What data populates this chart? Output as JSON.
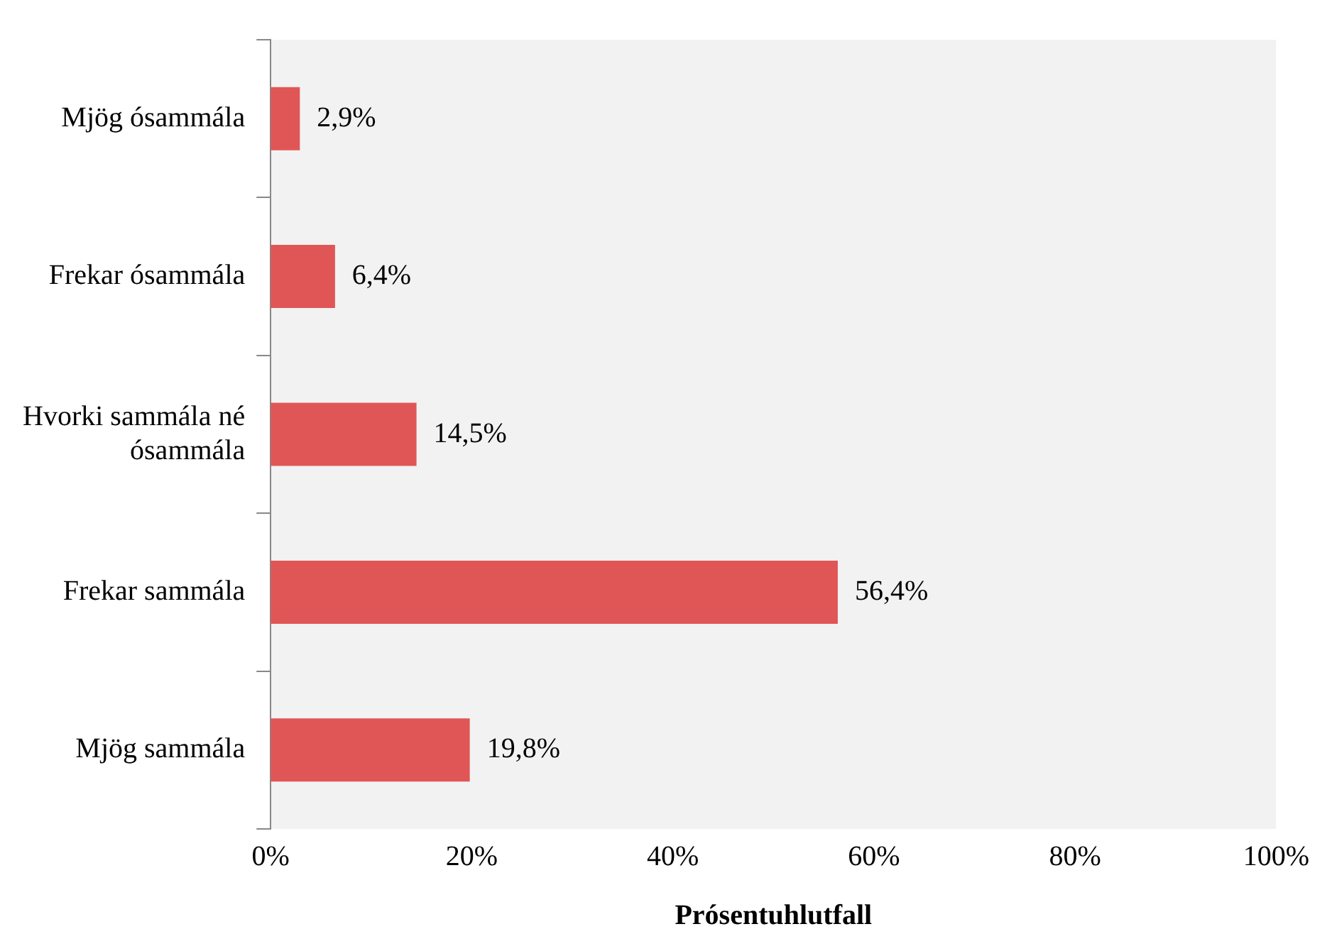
{
  "chart_data": {
    "type": "bar",
    "orientation": "horizontal",
    "xlabel": "Prósentuhlutfall",
    "categories": [
      "Mjög ósammála",
      "Frekar ósammála",
      "Hvorki sammála né ósammála",
      "Frekar sammála",
      "Mjög sammála"
    ],
    "values": [
      2.9,
      6.4,
      14.5,
      56.4,
      19.8
    ],
    "value_labels": [
      "2,9%",
      "6,4%",
      "14,5%",
      "56,4%",
      "19,8%"
    ],
    "color": "#e05656",
    "xlim": [
      0,
      100
    ],
    "xticks": [
      {
        "value": 0,
        "label": "0%"
      },
      {
        "value": 20,
        "label": "20%"
      },
      {
        "value": 40,
        "label": "40%"
      },
      {
        "value": 60,
        "label": "60%"
      },
      {
        "value": 80,
        "label": "80%"
      },
      {
        "value": 100,
        "label": "100%"
      }
    ],
    "grid": false,
    "legend": false
  }
}
